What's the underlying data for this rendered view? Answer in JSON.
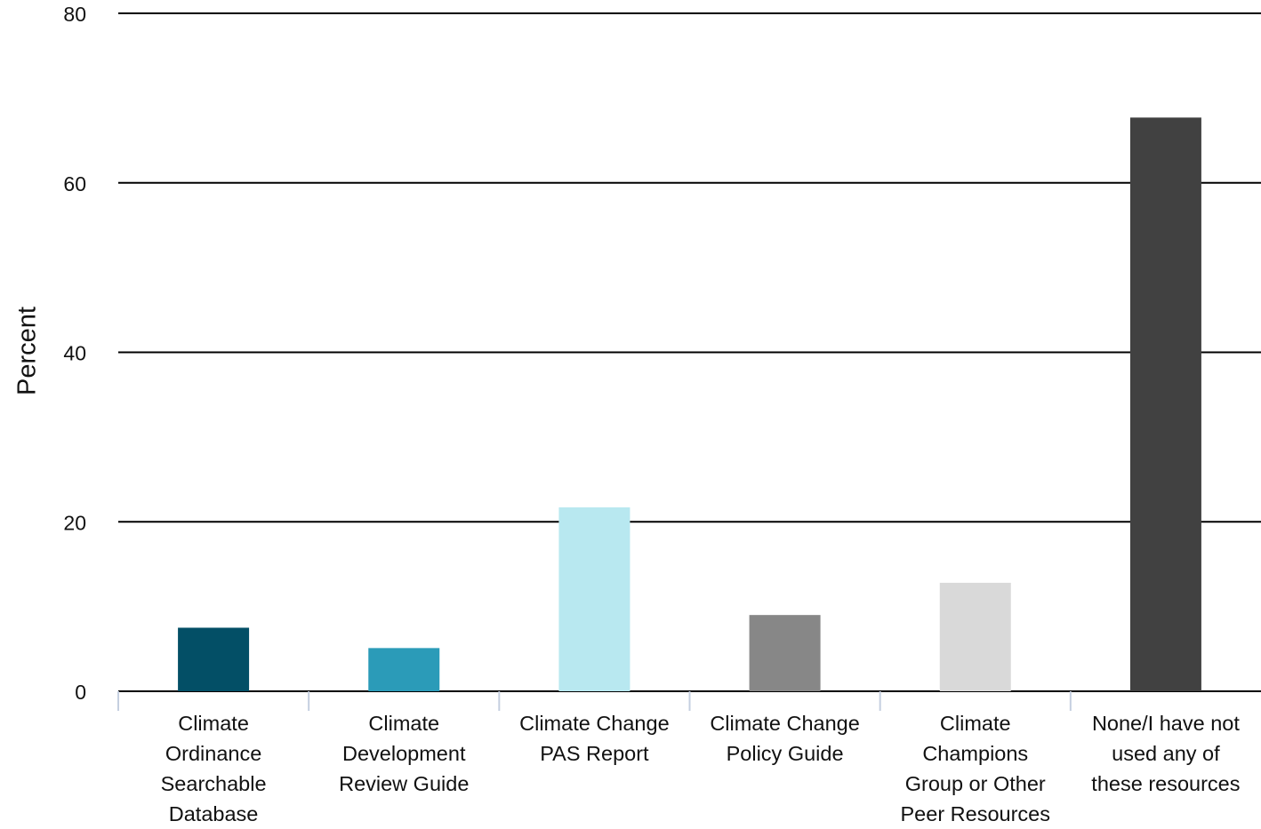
{
  "chart_data": {
    "type": "bar",
    "y_label": "Percent",
    "categories": [
      "Climate\nOrdinance\nSearchable\nDatabase",
      "Climate\nDevelopment\nReview Guide",
      "Climate Change\nPAS Report",
      "Climate Change\nPolicy Guide",
      "Climate\nChampions\nGroup or Other\nPeer Resources",
      "None/I have not\nused any of\nthese resources"
    ],
    "values": [
      7.5,
      5.1,
      21.7,
      9.0,
      12.8,
      67.7
    ],
    "colors": [
      "#034f66",
      "#2b9bb8",
      "#b8e8f0",
      "#878787",
      "#d9d9d9",
      "#414141"
    ],
    "ylim": [
      0,
      80
    ],
    "yticks": [
      0,
      20,
      40,
      60,
      80
    ],
    "grid": true
  }
}
